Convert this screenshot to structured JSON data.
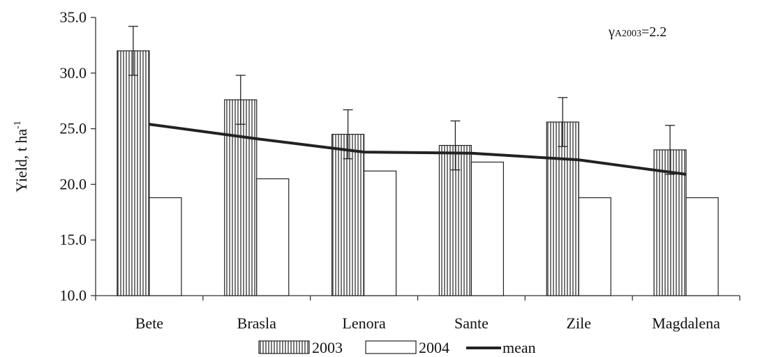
{
  "chart_data": {
    "type": "bar",
    "categories": [
      "Bete",
      "Brasla",
      "Lenora",
      "Sante",
      "Zile",
      "Magdalena"
    ],
    "series": [
      {
        "name": "2003",
        "kind": "bar",
        "pattern": "vertical-hatch",
        "values": [
          32.0,
          27.6,
          24.5,
          23.5,
          25.6,
          23.1
        ],
        "error": [
          2.2,
          2.2,
          2.2,
          2.2,
          2.2,
          2.2
        ]
      },
      {
        "name": "2004",
        "kind": "bar",
        "pattern": "white",
        "values": [
          18.8,
          20.5,
          21.2,
          22.0,
          18.8,
          18.8
        ]
      },
      {
        "name": "mean",
        "kind": "line",
        "values": [
          25.4,
          24.1,
          22.9,
          22.8,
          22.2,
          20.9
        ]
      }
    ],
    "ylabel": "Yield, t ha",
    "ylabel_sup": "-1",
    "ylim": [
      10.0,
      35.0
    ],
    "yticks": [
      "10.0",
      "15.0",
      "20.0",
      "25.0",
      "30.0",
      "35.0"
    ],
    "annotation": {
      "symbol": "γ",
      "subscript": "A2003",
      "text": "=2.2"
    },
    "legend_position": "bottom",
    "grid": false
  }
}
